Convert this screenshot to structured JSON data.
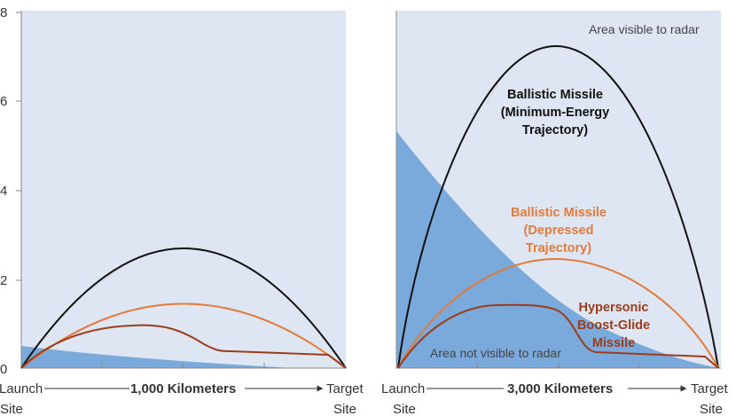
{
  "colors": {
    "visible_area": "#dfe6f3",
    "hidden_area": "#7aa9dc",
    "ballistic_min_energy": "#111111",
    "ballistic_depressed": "#e07b3c",
    "hypersonic": "#9c3d1a",
    "axis": "#888888",
    "text": "#333333"
  },
  "y_axis": {
    "ticks": [
      "0",
      "2",
      "4",
      "6",
      "8"
    ]
  },
  "left_panel": {
    "launch_label": [
      "Launch",
      "Site"
    ],
    "target_label": [
      "Target",
      "Site"
    ],
    "distance_label": "1,000 Kilometers"
  },
  "right_panel": {
    "launch_label": [
      "Launch",
      "Site"
    ],
    "target_label": [
      "Target",
      "Site"
    ],
    "distance_label": "3,000 Kilometers",
    "visible_label": "Area visible to radar",
    "not_visible_label": "Area not visible to radar",
    "labels": {
      "ballistic_min_energy": [
        "Ballistic Missile",
        "(Minimum-Energy",
        "Trajectory)"
      ],
      "ballistic_depressed": [
        "Ballistic Missile",
        "(Depressed",
        "Trajectory)"
      ],
      "hypersonic": [
        "Hypersonic",
        "Boost-Glide",
        "Missile"
      ]
    }
  }
}
